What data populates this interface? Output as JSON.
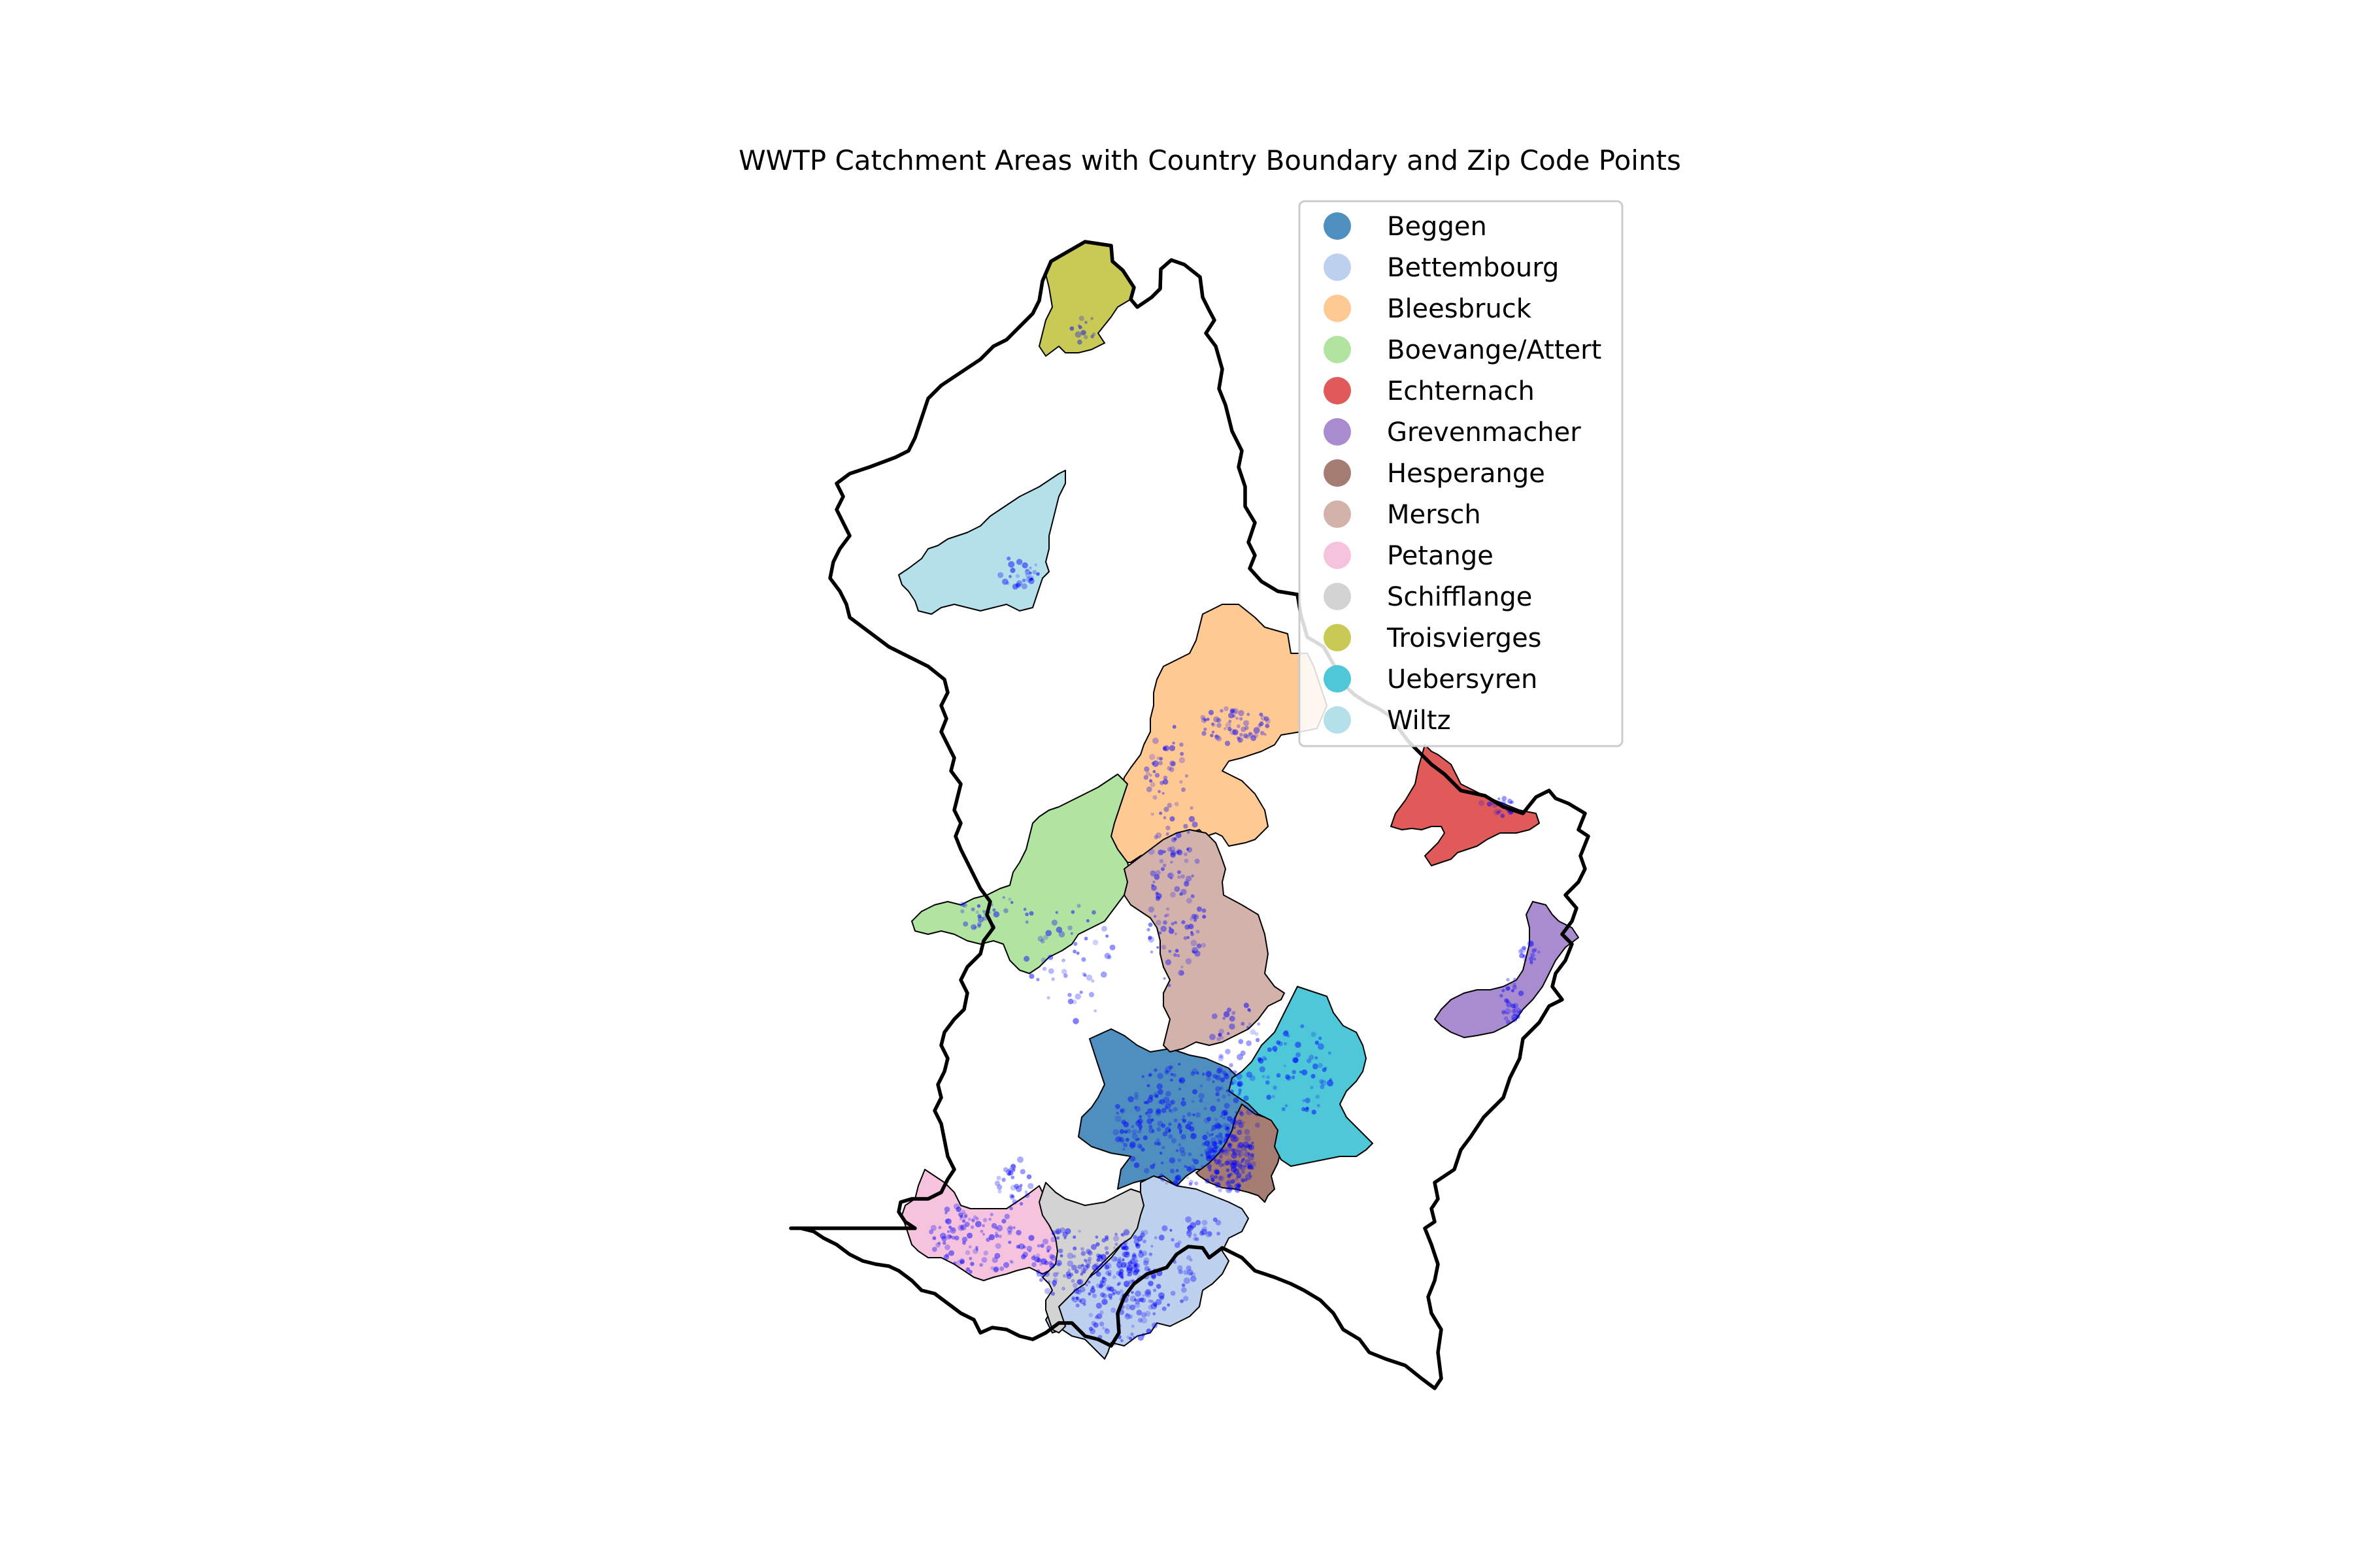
{
  "title": "WWTP Catchment Areas with Country Boundary and Zip Code Points",
  "chart_data": {
    "type": "map",
    "title": "WWTP Catchment Areas with Country Boundary and Zip Code Points",
    "legend_placement": "upper-right",
    "point_color": "#0000ff",
    "boundary_color": "#000000",
    "categories": [
      {
        "name": "Beggen",
        "color": "#4f8fc0"
      },
      {
        "name": "Bettembourg",
        "color": "#bdd0ee"
      },
      {
        "name": "Bleesbruck",
        "color": "#ffc994"
      },
      {
        "name": "Boevange/Attert",
        "color": "#b1e4a1"
      },
      {
        "name": "Echternach",
        "color": "#e05a5a"
      },
      {
        "name": "Grevenmacher",
        "color": "#a98bcf"
      },
      {
        "name": "Hesperange",
        "color": "#a47c72"
      },
      {
        "name": "Mersch",
        "color": "#d3b2ab"
      },
      {
        "name": "Petange",
        "color": "#f5c3dd"
      },
      {
        "name": "Schifflange",
        "color": "#d3d3d3"
      },
      {
        "name": "Troisvierges",
        "color": "#c9ca56"
      },
      {
        "name": "Uebersyren",
        "color": "#4ec8d8"
      },
      {
        "name": "Wiltz",
        "color": "#b3e0e9"
      }
    ]
  }
}
